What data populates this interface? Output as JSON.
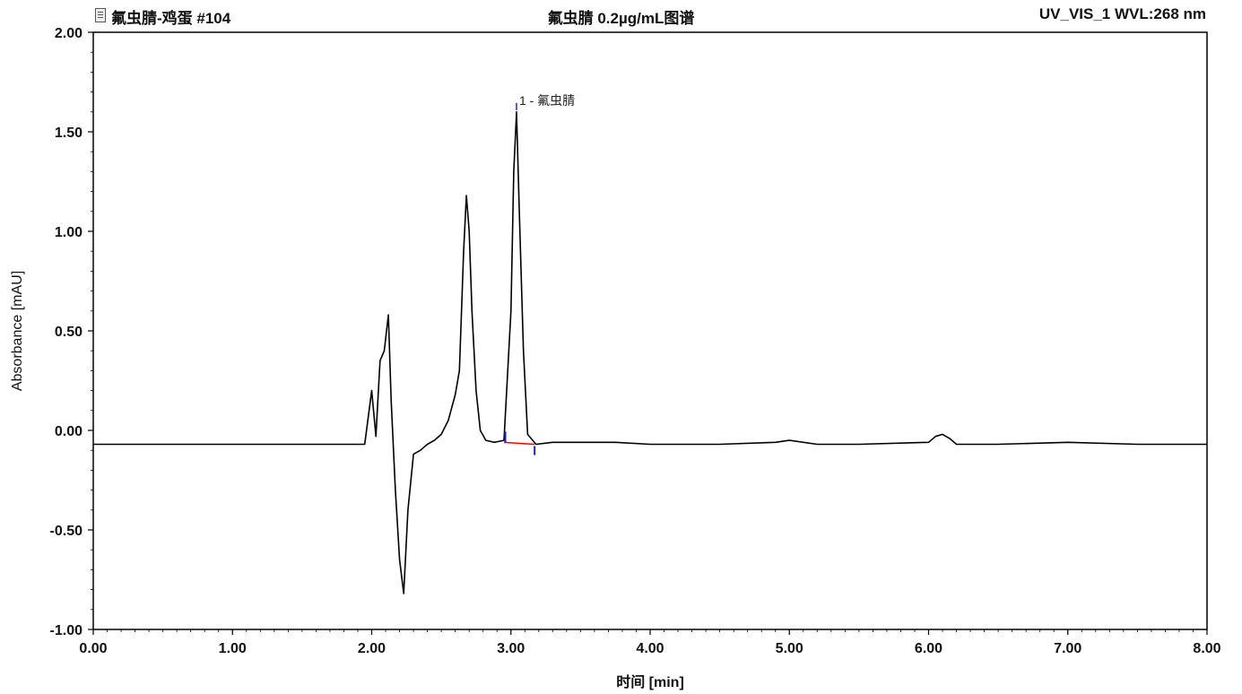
{
  "header": {
    "left": "氟虫腈-鸡蛋 #104",
    "center": "氟虫腈 0.2µg/mL图谱",
    "right": "UV_VIS_1 WVL:268 nm"
  },
  "chart_data": {
    "type": "line",
    "title": "氟虫腈 0.2µg/mL图谱",
    "xlabel": "时间 [min]",
    "ylabel": "Absorbance [mAU]",
    "xlim": [
      0,
      8
    ],
    "ylim": [
      -1,
      2
    ],
    "x_ticks": [
      "0.00",
      "1.00",
      "2.00",
      "3.00",
      "4.00",
      "5.00",
      "6.00",
      "7.00",
      "8.00"
    ],
    "y_ticks": [
      "-1.00",
      "-0.50",
      "0.00",
      "0.50",
      "1.00",
      "1.50",
      "2.00"
    ],
    "grid": false,
    "series": [
      {
        "color": "#000000",
        "x": [
          0.0,
          0.5,
          1.0,
          1.5,
          1.95,
          2.0,
          2.03,
          2.06,
          2.09,
          2.12,
          2.14,
          2.17,
          2.2,
          2.23,
          2.26,
          2.3,
          2.35,
          2.4,
          2.45,
          2.5,
          2.55,
          2.6,
          2.63,
          2.66,
          2.68,
          2.7,
          2.72,
          2.75,
          2.78,
          2.82,
          2.88,
          2.95,
          3.0,
          3.02,
          3.04,
          3.06,
          3.09,
          3.12,
          3.18,
          3.3,
          3.5,
          3.75,
          4.0,
          4.5,
          4.9,
          5.0,
          5.2,
          5.5,
          6.0,
          6.05,
          6.1,
          6.15,
          6.2,
          6.5,
          7.0,
          7.5,
          8.0
        ],
        "y": [
          -0.07,
          -0.07,
          -0.07,
          -0.07,
          -0.07,
          0.2,
          -0.03,
          0.35,
          0.4,
          0.58,
          0.15,
          -0.3,
          -0.65,
          -0.82,
          -0.4,
          -0.12,
          -0.1,
          -0.07,
          -0.05,
          -0.02,
          0.05,
          0.18,
          0.3,
          0.9,
          1.18,
          1.0,
          0.6,
          0.2,
          0.0,
          -0.05,
          -0.06,
          -0.05,
          0.6,
          1.3,
          1.6,
          1.1,
          0.4,
          -0.02,
          -0.07,
          -0.06,
          -0.06,
          -0.06,
          -0.07,
          -0.07,
          -0.06,
          -0.05,
          -0.07,
          -0.07,
          -0.06,
          -0.03,
          -0.02,
          -0.04,
          -0.07,
          -0.07,
          -0.06,
          -0.07,
          -0.07
        ]
      }
    ],
    "baseline": {
      "color": "#ff0000",
      "x": [
        2.95,
        3.17
      ],
      "y": [
        -0.06,
        -0.07
      ]
    },
    "peak_markers": {
      "color": "#2222cc",
      "x": [
        2.96,
        3.17
      ]
    },
    "annotations": [
      {
        "text": "1 - 氟虫腈",
        "x": 3.04,
        "y": 1.6
      }
    ]
  }
}
